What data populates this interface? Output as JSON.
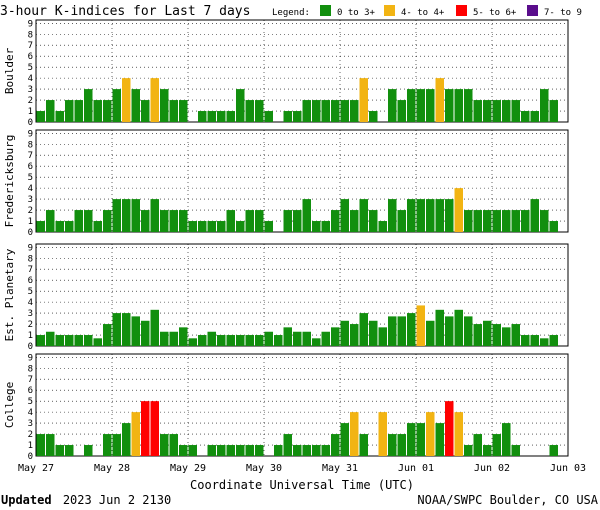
{
  "chart_data": {
    "type": "bar",
    "title": "3-hour K-indices for Last 7 days",
    "legend": {
      "label": "Legend:",
      "entries": [
        {
          "label": "0 to 3+",
          "color": "#128f0e"
        },
        {
          "label": "4- to 4+",
          "color": "#f2b413"
        },
        {
          "label": "5- to 6+",
          "color": "#ff0000"
        },
        {
          "label": "7- to 9",
          "color": "#5a0d8c"
        }
      ]
    },
    "xlabel": "Coordinate Universal Time (UTC)",
    "x_ticks": [
      "May 27",
      "May 28",
      "May 29",
      "May 30",
      "May 31",
      "Jun 01",
      "Jun 02",
      "Jun 03"
    ],
    "ylim": [
      0,
      9
    ],
    "y_ticks": [
      "0",
      "1",
      "2",
      "3",
      "4",
      "5",
      "6",
      "7",
      "8",
      "9"
    ],
    "grid": true,
    "series": [
      {
        "name": "Boulder",
        "values": [
          1,
          2,
          1,
          2,
          2,
          3,
          2,
          2,
          3,
          4,
          3,
          2,
          4,
          3,
          2,
          2,
          0,
          1,
          1,
          1,
          1,
          3,
          2,
          2,
          1,
          0,
          1,
          1,
          2,
          2,
          2,
          2,
          2,
          2,
          4,
          1,
          0,
          3,
          2,
          3,
          3,
          3,
          4,
          3,
          3,
          3,
          2,
          2,
          2,
          2,
          2,
          1,
          1,
          3,
          2,
          0
        ]
      },
      {
        "name": "Fredericksburg",
        "values": [
          1,
          2,
          1,
          1,
          2,
          2,
          1,
          2,
          3,
          3,
          3,
          2,
          3,
          2,
          2,
          2,
          1,
          1,
          1,
          1,
          2,
          1,
          2,
          2,
          1,
          0,
          2,
          2,
          3,
          1,
          1,
          2,
          3,
          2,
          3,
          2,
          1,
          3,
          2,
          3,
          3,
          3,
          3,
          3,
          4,
          2,
          2,
          2,
          2,
          2,
          2,
          2,
          3,
          2,
          1,
          0
        ]
      },
      {
        "name": "Est. Planetary",
        "values": [
          1,
          1.3,
          1,
          1,
          1,
          1,
          0.7,
          2,
          3,
          3,
          2.7,
          2.3,
          3.3,
          1.3,
          1.3,
          1.7,
          0.7,
          1,
          1.3,
          1,
          1,
          1,
          1,
          1,
          1.3,
          1,
          1.7,
          1.3,
          1.3,
          0.7,
          1.3,
          1.7,
          2.3,
          2,
          3,
          2.3,
          1.7,
          2.7,
          2.7,
          3,
          3.7,
          2.3,
          3.3,
          2.7,
          3.3,
          2.7,
          2,
          2.3,
          2,
          1.7,
          2,
          1,
          1,
          0.7,
          1,
          0
        ]
      },
      {
        "name": "College",
        "values": [
          2,
          2,
          1,
          1,
          0,
          1,
          0,
          2,
          2,
          3,
          4,
          5,
          5,
          2,
          2,
          1,
          1,
          0,
          1,
          1,
          1,
          1,
          1,
          1,
          0,
          1,
          2,
          1,
          1,
          1,
          1,
          2,
          3,
          4,
          2,
          0,
          4,
          2,
          2,
          3,
          3,
          4,
          3,
          5,
          4,
          1,
          2,
          1,
          2,
          3,
          1,
          0,
          0,
          0,
          1,
          0
        ]
      }
    ]
  },
  "footer": {
    "updated_label": "Updated",
    "updated_value": "2023 Jun  2 2130",
    "source": "NOAA/SWPC Boulder, CO USA"
  }
}
